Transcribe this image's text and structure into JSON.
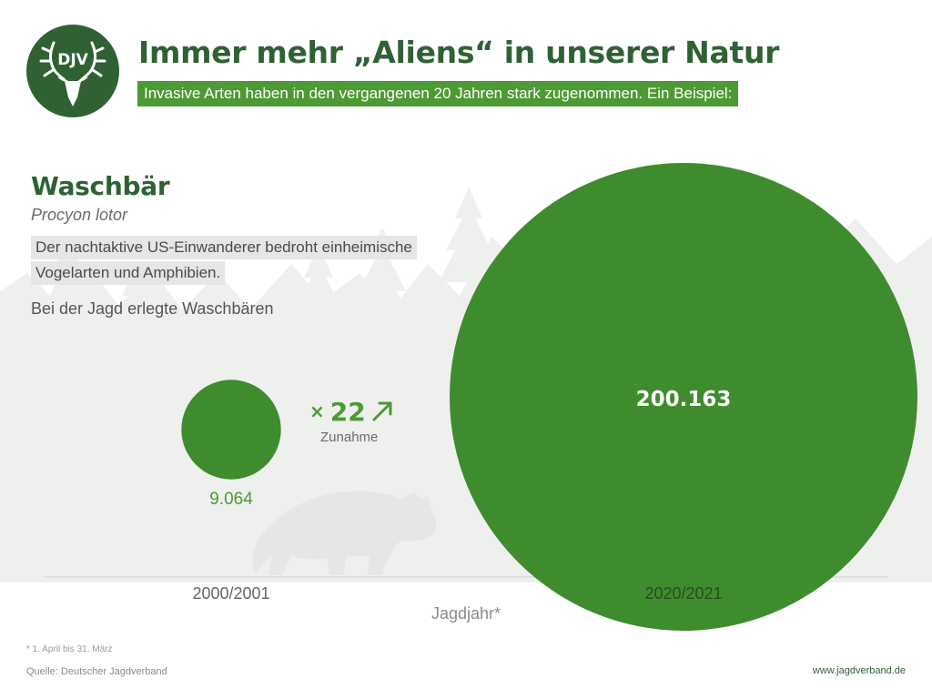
{
  "header": {
    "logo_text": "DJV",
    "title": "Immer mehr „Aliens“ in unserer Natur",
    "subtitle": "Invasive Arten haben in den vergangenen 20 Jahren stark zugenommen. Ein Beispiel:"
  },
  "species": {
    "name": "Waschbär",
    "latin": "Procyon lotor",
    "description_lines": [
      "Der nachtaktive US-Einwanderer bedroht einheimische",
      "Vogelarten und Amphibien."
    ],
    "metric_label": "Bei der Jagd erlegte Waschbären"
  },
  "factor": {
    "prefix": "×",
    "value": "22",
    "label": "Zunahme"
  },
  "footer": {
    "footnote": "* 1. April bis 31. März",
    "source": "Quelle: Deutscher Jagdverband",
    "url": "www.jagdverband.de"
  },
  "colors": {
    "dark_green": "#2f6134",
    "bubble_green": "#3f8c2e",
    "accent_green": "#4c9a33",
    "forest_gray": "#eceeec"
  },
  "icons": {
    "logo": "deer-antlers-icon",
    "trend": "arrow-up-right-icon"
  },
  "chart_data": {
    "type": "bubble",
    "categories": [
      "2000/2001",
      "2020/2021"
    ],
    "values": [
      9064,
      200163
    ],
    "value_labels": [
      "9.064",
      "200.163"
    ],
    "xlabel": "Jagdjahr*",
    "ylabel": "Bei der Jagd erlegte Waschbären",
    "title": "Waschbär",
    "encoding": "circle area proportional to value"
  }
}
